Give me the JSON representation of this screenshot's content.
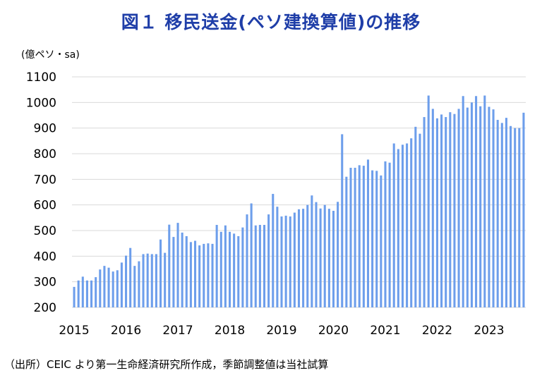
{
  "chart_data": {
    "type": "bar",
    "title": "図１ 移民送金(ペソ建換算値)の推移",
    "unit_label": "(億ペソ・sa)",
    "source": "（出所）CEIC より第一生命経済研究所作成，季節調整値は当社試算",
    "ylim": [
      200,
      1100
    ],
    "yticks": [
      200,
      300,
      400,
      500,
      600,
      700,
      800,
      900,
      1000,
      1100
    ],
    "xtick_labels": [
      "2015",
      "2016",
      "2017",
      "2018",
      "2019",
      "2020",
      "2021",
      "2022",
      "2023"
    ],
    "bar_color": "#6d9eeb",
    "grid": "horizontal",
    "start_month": "2015-01",
    "frequency": "monthly",
    "values": [
      280,
      305,
      320,
      305,
      305,
      318,
      348,
      362,
      355,
      340,
      345,
      375,
      402,
      432,
      362,
      380,
      408,
      410,
      408,
      408,
      465,
      413,
      523,
      475,
      530,
      492,
      478,
      455,
      460,
      442,
      448,
      450,
      448,
      522,
      495,
      520,
      495,
      488,
      478,
      512,
      563,
      606,
      520,
      522,
      522,
      563,
      643,
      593,
      555,
      558,
      555,
      570,
      583,
      585,
      600,
      637,
      611,
      586,
      600,
      585,
      577,
      612,
      876,
      710,
      745,
      745,
      755,
      753,
      777,
      735,
      733,
      715,
      770,
      765,
      840,
      818,
      835,
      840,
      860,
      905,
      878,
      943,
      1027,
      975,
      938,
      953,
      943,
      962,
      955,
      975,
      1025,
      980,
      1000,
      1025,
      985,
      1027,
      983,
      973,
      932,
      920,
      940,
      908,
      900,
      900,
      960
    ]
  }
}
